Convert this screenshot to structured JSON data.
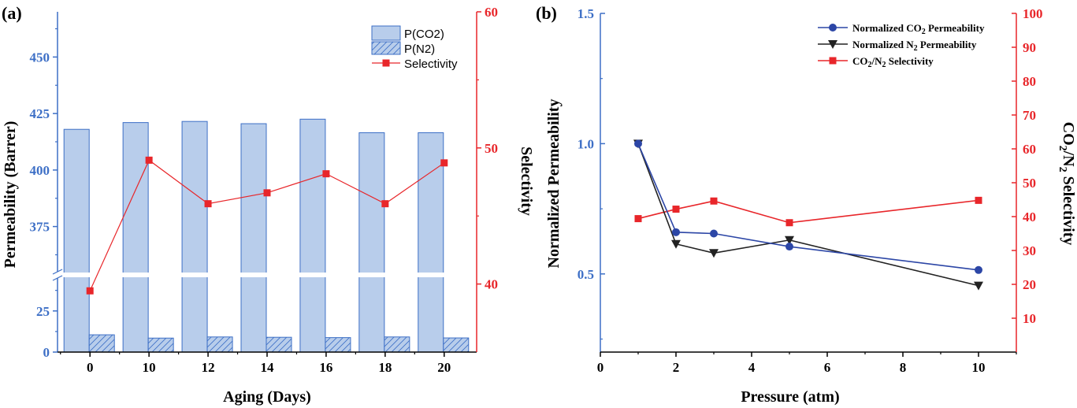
{
  "colors": {
    "axis_blue": "#3d6fc6",
    "axis_red": "#e8262a",
    "bar_fill": "#b8cdeb",
    "bar_stroke": "#3d6fc6",
    "sel_red": "#e8262a",
    "series_blue": "#2c46a6",
    "series_black": "#222222",
    "series_red": "#e8262a"
  },
  "chart_data": [
    {
      "panel_label": "(a)",
      "type": "bar",
      "xlabel": "Aging (Days)",
      "ylabel": "Permeability (Barrer)",
      "y2label": "Selectivity",
      "categories": [
        "0",
        "10",
        "12",
        "14",
        "16",
        "18",
        "20"
      ],
      "y_lower_range": [
        0,
        45
      ],
      "y_upper_range": [
        355,
        470
      ],
      "y_lower_ticks": [
        0,
        25
      ],
      "y_upper_ticks": [
        375,
        400,
        425,
        450
      ],
      "y2_range": [
        35,
        60
      ],
      "y2_ticks": [
        40,
        50,
        60
      ],
      "series": [
        {
          "name": "P(CO2)",
          "values": [
            418,
            421,
            421.5,
            420.5,
            422.5,
            416.5,
            416.5
          ]
        },
        {
          "name": "P(N2)",
          "values": [
            10.5,
            8.5,
            9.2,
            9.0,
            8.8,
            9.2,
            8.6
          ]
        },
        {
          "name": "Selectivity",
          "values": [
            39.5,
            49.1,
            45.9,
            46.7,
            48.1,
            45.9,
            48.9
          ]
        }
      ]
    },
    {
      "panel_label": "(b)",
      "type": "line",
      "xlabel": "Pressure (atm)",
      "ylabel": "Normalized Permeability",
      "y2label": "CO2/N2 Selectivity",
      "x_range": [
        0,
        11
      ],
      "x_ticks": [
        0,
        2,
        4,
        6,
        8,
        10
      ],
      "y_range": [
        0.2,
        1.5
      ],
      "y_ticks": [
        0.5,
        1.0,
        1.5
      ],
      "y_tick_labels": [
        "0.5",
        "1.0",
        "1.5"
      ],
      "y2_range": [
        0,
        100
      ],
      "y2_ticks": [
        10,
        20,
        30,
        40,
        50,
        60,
        70,
        80,
        90,
        100
      ],
      "series": [
        {
          "name": "Normalized CO2 Permeability",
          "x": [
            1,
            2,
            3,
            5,
            10
          ],
          "values": [
            1.0,
            0.66,
            0.655,
            0.605,
            0.515
          ]
        },
        {
          "name": "Normalized N2 Permeability",
          "x": [
            1,
            2,
            3,
            5,
            10
          ],
          "values": [
            1.0,
            0.615,
            0.58,
            0.63,
            0.455
          ]
        },
        {
          "name": "CO2/N2 Selectivity",
          "x": [
            1,
            2,
            3,
            5,
            10
          ],
          "values": [
            39.4,
            42.2,
            44.6,
            38.2,
            44.8
          ]
        }
      ]
    }
  ]
}
